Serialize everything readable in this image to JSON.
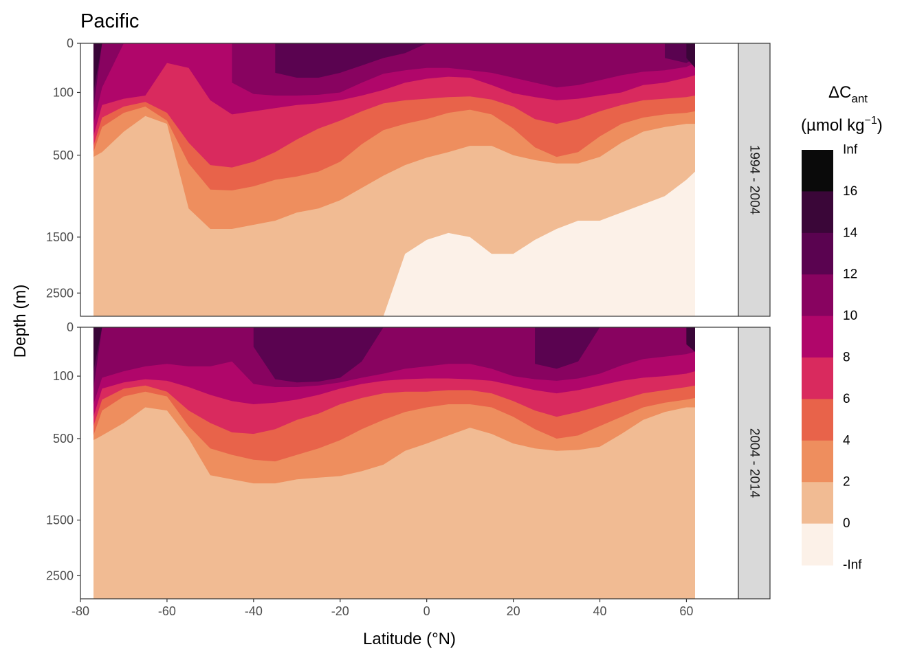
{
  "chart_data": {
    "type": "contour",
    "title": "Pacific",
    "xlabel": "Latitude (°N)",
    "ylabel": "Depth (m)",
    "x_ticks": [
      "-80",
      "-60",
      "-40",
      "-20",
      "0",
      "20",
      "40",
      "60"
    ],
    "x_tick_values": [
      -80,
      -60,
      -40,
      -20,
      0,
      20,
      40,
      60
    ],
    "xlim": [
      -80,
      72
    ],
    "y_ticks": [
      "0",
      "100",
      "500",
      "1500",
      "2500"
    ],
    "y_tick_values": [
      0,
      100,
      500,
      1500,
      2500
    ],
    "y_scale": "reversed, non-linear (stretched near surface)",
    "grid": true,
    "legend": {
      "title_main": "ΔC",
      "title_sub": "ant",
      "units_pre": "(µmol kg",
      "units_sup": "−1",
      "units_post": ")",
      "placement": "right",
      "labels": [
        "Inf",
        "16",
        "14",
        "12",
        "10",
        "8",
        "6",
        "4",
        "2",
        "0",
        "-Inf"
      ],
      "bins": [
        "16 – Inf",
        "14 – 16",
        "12 – 14",
        "10 – 12",
        "8 – 10",
        "6 – 8",
        "4 – 6",
        "2 – 4",
        "0 – 2",
        "-Inf – 0"
      ],
      "colors": [
        "#0a0a0a",
        "#3a0638",
        "#5a0350",
        "#880360",
        "#b0066a",
        "#d92a5e",
        "#e8634a",
        "#ee8e5e",
        "#f1bb93",
        "#fcf1e8"
      ]
    },
    "panels": [
      {
        "strip": "1994 - 2004",
        "levels_top_down_description": "bands from deep (lowest) to surface (highest) ΔCant",
        "lat_samples": [
          -77,
          -75,
          -70,
          -65,
          -60,
          -55,
          -50,
          -45,
          -40,
          -35,
          -30,
          -25,
          -20,
          -15,
          -10,
          -5,
          0,
          5,
          10,
          15,
          20,
          25,
          30,
          35,
          40,
          45,
          50,
          55,
          60,
          62
        ],
        "boundary_depth_m": {
          "lt_0": [
            3500,
            3500,
            3500,
            3500,
            3500,
            3500,
            3500,
            3500,
            3500,
            3500,
            3500,
            3500,
            3500,
            3500,
            3500,
            1800,
            1550,
            1450,
            1500,
            1800,
            1800,
            1550,
            1400,
            1300,
            1300,
            1200,
            1100,
            1000,
            800,
            700
          ],
          "gt_2": [
            520,
            480,
            350,
            250,
            300,
            1150,
            1400,
            1400,
            1350,
            1300,
            1200,
            1150,
            1050,
            900,
            750,
            620,
            530,
            480,
            440,
            440,
            500,
            560,
            600,
            600,
            520,
            420,
            350,
            320,
            300,
            300
          ],
          "gt_4": [
            480,
            320,
            230,
            190,
            280,
            600,
            920,
            930,
            880,
            800,
            760,
            700,
            580,
            430,
            340,
            300,
            270,
            230,
            210,
            240,
            330,
            450,
            520,
            480,
            380,
            300,
            260,
            240,
            230,
            220
          ],
          "gt_6": [
            440,
            260,
            190,
            160,
            230,
            420,
            620,
            650,
            580,
            480,
            400,
            330,
            280,
            220,
            170,
            150,
            140,
            130,
            125,
            145,
            190,
            270,
            300,
            270,
            220,
            180,
            150,
            140,
            130,
            120
          ],
          "gt_8": [
            380,
            180,
            140,
            120,
            40,
            50,
            150,
            240,
            220,
            200,
            180,
            170,
            150,
            120,
            95,
            80,
            72,
            68,
            70,
            85,
            105,
            130,
            150,
            140,
            120,
            100,
            85,
            80,
            70,
            65
          ],
          "gt_10": [
            300,
            90,
            0,
            0,
            0,
            0,
            0,
            80,
            110,
            120,
            120,
            115,
            100,
            80,
            62,
            55,
            50,
            50,
            55,
            60,
            70,
            80,
            90,
            85,
            75,
            65,
            58,
            55,
            48,
            40
          ],
          "gt_12": [
            200,
            0,
            0,
            0,
            0,
            0,
            0,
            0,
            0,
            60,
            70,
            70,
            60,
            45,
            30,
            20,
            0,
            0,
            0,
            0,
            0,
            0,
            0,
            0,
            0,
            0,
            0,
            30,
            40,
            30
          ],
          "gt_14": [
            100,
            0,
            0,
            0,
            0,
            0,
            0,
            0,
            0,
            0,
            0,
            0,
            0,
            0,
            0,
            0,
            0,
            0,
            0,
            0,
            0,
            0,
            0,
            0,
            0,
            0,
            0,
            0,
            30,
            50
          ]
        }
      },
      {
        "strip": "2004 - 2014",
        "lat_samples": [
          -77,
          -75,
          -70,
          -65,
          -60,
          -55,
          -50,
          -45,
          -40,
          -35,
          -30,
          -25,
          -20,
          -15,
          -10,
          -5,
          0,
          5,
          10,
          15,
          20,
          25,
          30,
          35,
          40,
          45,
          50,
          55,
          60,
          62
        ],
        "boundary_depth_m": {
          "lt_0": [
            3500,
            3500,
            3500,
            3500,
            3500,
            3500,
            3500,
            3500,
            3500,
            3500,
            3500,
            3500,
            3500,
            3500,
            3500,
            3500,
            3500,
            3500,
            3500,
            3500,
            3500,
            3500,
            3500,
            3500,
            3500,
            3500,
            3500,
            3500,
            3500,
            3500
          ],
          "gt_2": [
            520,
            480,
            400,
            300,
            320,
            500,
            950,
            1000,
            1050,
            1050,
            1000,
            980,
            960,
            900,
            820,
            650,
            560,
            480,
            430,
            470,
            560,
            620,
            650,
            640,
            600,
            470,
            380,
            330,
            300,
            300
          ],
          "gt_4": [
            480,
            320,
            230,
            200,
            230,
            420,
            620,
            700,
            760,
            780,
            700,
            620,
            520,
            440,
            380,
            330,
            300,
            280,
            280,
            300,
            360,
            440,
            500,
            480,
            420,
            360,
            300,
            270,
            250,
            240
          ],
          "gt_6": [
            420,
            250,
            180,
            160,
            200,
            320,
            400,
            460,
            470,
            440,
            380,
            340,
            280,
            240,
            210,
            200,
            200,
            190,
            190,
            210,
            260,
            320,
            360,
            330,
            290,
            250,
            210,
            190,
            170,
            160
          ],
          "gt_8": [
            360,
            180,
            140,
            120,
            130,
            170,
            220,
            260,
            280,
            270,
            250,
            220,
            180,
            150,
            130,
            120,
            115,
            115,
            120,
            130,
            160,
            190,
            210,
            190,
            160,
            130,
            110,
            100,
            95,
            90
          ],
          "gt_10": [
            280,
            110,
            90,
            80,
            75,
            80,
            80,
            70,
            150,
            170,
            170,
            160,
            140,
            110,
            95,
            85,
            80,
            75,
            75,
            85,
            100,
            120,
            130,
            115,
            95,
            78,
            65,
            60,
            55,
            50
          ],
          "gt_12": [
            180,
            0,
            0,
            0,
            0,
            0,
            0,
            0,
            40,
            120,
            140,
            135,
            110,
            70,
            0,
            0,
            0,
            0,
            0,
            0,
            0,
            75,
            85,
            70,
            0,
            0,
            0,
            0,
            30,
            40
          ],
          "gt_14": [
            90,
            0,
            0,
            0,
            0,
            0,
            0,
            0,
            0,
            0,
            0,
            0,
            0,
            0,
            0,
            0,
            0,
            0,
            0,
            0,
            0,
            0,
            0,
            0,
            0,
            0,
            0,
            0,
            35,
            50
          ]
        }
      }
    ]
  }
}
